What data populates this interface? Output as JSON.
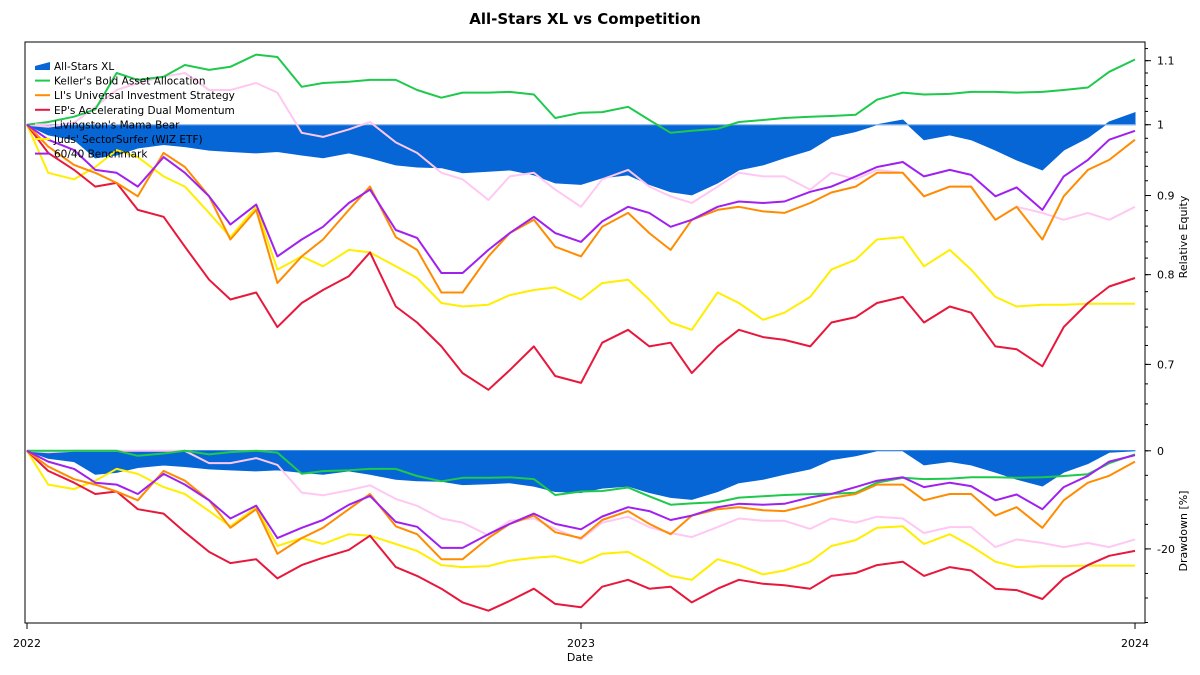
{
  "chart_data": {
    "type": "line",
    "title": "All-Stars XL vs Competition",
    "xlabel": "Date",
    "x_ticks": [
      "2022",
      "2023",
      "2024"
    ],
    "xlim": [
      "2022-01-01",
      "2024-01-01"
    ],
    "legend_position": "top-left",
    "grid": false,
    "panels": [
      {
        "name": "equity",
        "ylabel": "Relative Equity",
        "scale": "log",
        "ylim": [
          0.633,
          1.131
        ],
        "major_ticks": [
          0.7,
          0.8,
          0.9,
          1,
          1.1
        ],
        "tick_labels": [
          "0.7",
          "0.8",
          "0.9",
          "1",
          "1.1"
        ],
        "minor_step": 0.02,
        "axis_side": "right"
      },
      {
        "name": "drawdown",
        "ylabel": "Drawdown [%]",
        "scale": "linear",
        "ylim": [
          -35.1,
          2.2
        ],
        "major_ticks": [
          0,
          -20
        ],
        "tick_labels": [
          "0",
          "-20"
        ],
        "minor_step": 5,
        "axis_side": "right"
      }
    ],
    "x": [
      "2022-01-01",
      "2022-01-15",
      "2022-02-01",
      "2022-02-15",
      "2022-03-01",
      "2022-03-15",
      "2022-04-01",
      "2022-04-15",
      "2022-05-01",
      "2022-05-15",
      "2022-06-01",
      "2022-06-15",
      "2022-07-01",
      "2022-07-15",
      "2022-08-01",
      "2022-08-15",
      "2022-09-01",
      "2022-09-15",
      "2022-10-01",
      "2022-10-15",
      "2022-11-01",
      "2022-11-15",
      "2022-12-01",
      "2022-12-15",
      "2023-01-01",
      "2023-01-15",
      "2023-02-01",
      "2023-02-15",
      "2023-03-01",
      "2023-03-15",
      "2023-04-01",
      "2023-04-15",
      "2023-05-01",
      "2023-05-15",
      "2023-06-01",
      "2023-06-15",
      "2023-07-01",
      "2023-07-15",
      "2023-08-01",
      "2023-08-15",
      "2023-09-01",
      "2023-09-15",
      "2023-10-01",
      "2023-10-15",
      "2023-11-01",
      "2023-11-15",
      "2023-12-01",
      "2023-12-15",
      "2024-01-01"
    ],
    "series": [
      {
        "name": "All-Stars XL",
        "style": "area",
        "color": "#0666d6",
        "values": [
          1.0,
          0.985,
          0.978,
          0.952,
          0.956,
          0.966,
          0.971,
          0.968,
          0.963,
          0.961,
          0.959,
          0.961,
          0.956,
          0.952,
          0.959,
          0.952,
          0.942,
          0.939,
          0.938,
          0.931,
          0.933,
          0.935,
          0.928,
          0.917,
          0.915,
          0.924,
          0.928,
          0.915,
          0.905,
          0.901,
          0.917,
          0.935,
          0.942,
          0.952,
          0.963,
          0.982,
          0.99,
          1.0,
          1.007,
          0.978,
          0.985,
          0.978,
          0.963,
          0.949,
          0.935,
          0.963,
          0.981,
          1.004,
          1.018
        ]
      },
      {
        "name": "Keller's Bold Asset Allocation",
        "style": "line",
        "color": "#1ec94c",
        "values": [
          1.0,
          1.004,
          1.012,
          1.023,
          1.08,
          1.069,
          1.074,
          1.093,
          1.085,
          1.09,
          1.11,
          1.106,
          1.058,
          1.064,
          1.066,
          1.069,
          1.069,
          1.053,
          1.041,
          1.049,
          1.049,
          1.05,
          1.046,
          1.01,
          1.018,
          1.019,
          1.027,
          1.007,
          0.988,
          0.991,
          0.994,
          1.004,
          1.007,
          1.01,
          1.012,
          1.013,
          1.015,
          1.038,
          1.049,
          1.046,
          1.047,
          1.05,
          1.05,
          1.049,
          1.05,
          1.053,
          1.057,
          1.082,
          1.102
        ]
      },
      {
        "name": "LI's Universal Investment Strategy",
        "style": "line",
        "color": "#ff8c00",
        "values": [
          1.0,
          0.968,
          0.942,
          0.931,
          0.917,
          0.899,
          0.959,
          0.939,
          0.899,
          0.843,
          0.881,
          0.79,
          0.822,
          0.843,
          0.881,
          0.912,
          0.846,
          0.83,
          0.779,
          0.779,
          0.822,
          0.851,
          0.868,
          0.834,
          0.822,
          0.859,
          0.877,
          0.851,
          0.83,
          0.868,
          0.881,
          0.885,
          0.879,
          0.877,
          0.89,
          0.904,
          0.912,
          0.931,
          0.931,
          0.899,
          0.912,
          0.912,
          0.868,
          0.885,
          0.843,
          0.899,
          0.935,
          0.949,
          0.978
        ]
      },
      {
        "name": "EP's Accelerating Dual Momentum",
        "style": "line",
        "color": "#e8173c",
        "values": [
          1.0,
          0.959,
          0.935,
          0.912,
          0.917,
          0.881,
          0.872,
          0.834,
          0.794,
          0.771,
          0.779,
          0.74,
          0.767,
          0.782,
          0.798,
          0.827,
          0.763,
          0.745,
          0.719,
          0.691,
          0.674,
          0.694,
          0.719,
          0.688,
          0.681,
          0.723,
          0.737,
          0.719,
          0.723,
          0.691,
          0.719,
          0.737,
          0.729,
          0.726,
          0.719,
          0.745,
          0.751,
          0.767,
          0.774,
          0.745,
          0.763,
          0.756,
          0.719,
          0.716,
          0.698,
          0.74,
          0.767,
          0.786,
          0.796
        ]
      },
      {
        "name": "Livingston's Mama Bear",
        "style": "line",
        "color": "#ffc8f2",
        "values": [
          1.0,
          0.997,
          1.003,
          1.027,
          1.053,
          1.064,
          1.074,
          1.08,
          1.053,
          1.053,
          1.064,
          1.049,
          0.988,
          0.982,
          0.993,
          1.004,
          0.974,
          0.959,
          0.931,
          0.922,
          0.894,
          0.926,
          0.931,
          0.908,
          0.885,
          0.922,
          0.935,
          0.912,
          0.899,
          0.89,
          0.912,
          0.931,
          0.926,
          0.926,
          0.908,
          0.931,
          0.922,
          0.935,
          0.931,
          0.899,
          0.912,
          0.912,
          0.868,
          0.885,
          0.877,
          0.868,
          0.877,
          0.868,
          0.885
        ]
      },
      {
        "name": "Juds' SectorSurfer (WIZ ETF)",
        "style": "line",
        "color": "#ffee00",
        "values": [
          1.0,
          0.931,
          0.922,
          0.939,
          0.963,
          0.953,
          0.926,
          0.912,
          0.877,
          0.846,
          0.885,
          0.806,
          0.822,
          0.81,
          0.83,
          0.827,
          0.81,
          0.796,
          0.767,
          0.763,
          0.765,
          0.776,
          0.782,
          0.785,
          0.771,
          0.79,
          0.794,
          0.771,
          0.745,
          0.737,
          0.779,
          0.767,
          0.748,
          0.756,
          0.774,
          0.806,
          0.818,
          0.843,
          0.846,
          0.81,
          0.83,
          0.806,
          0.774,
          0.763,
          0.765,
          0.765,
          0.766,
          0.766,
          0.766
        ]
      },
      {
        "name": "60/40 Benchmark",
        "style": "line",
        "color": "#a020f0",
        "values": [
          1.0,
          0.978,
          0.963,
          0.935,
          0.931,
          0.912,
          0.953,
          0.931,
          0.899,
          0.862,
          0.888,
          0.822,
          0.843,
          0.859,
          0.89,
          0.908,
          0.855,
          0.845,
          0.802,
          0.802,
          0.83,
          0.851,
          0.872,
          0.851,
          0.84,
          0.866,
          0.885,
          0.877,
          0.859,
          0.868,
          0.885,
          0.892,
          0.89,
          0.892,
          0.905,
          0.912,
          0.926,
          0.939,
          0.946,
          0.926,
          0.935,
          0.928,
          0.899,
          0.911,
          0.881,
          0.926,
          0.949,
          0.978,
          0.991
        ]
      }
    ]
  }
}
